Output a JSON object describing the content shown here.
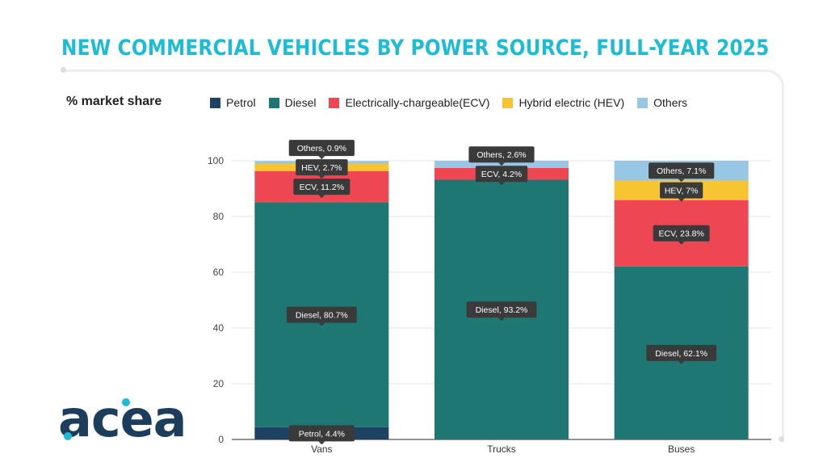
{
  "title": "NEW COMMERCIAL VEHICLES BY POWER SOURCE, FULL-YEAR 2025",
  "colors": {
    "title": "#1bbcd4",
    "Petrol": "#1d4263",
    "Diesel": "#1e7772",
    "ECV": "#ef4654",
    "HEV": "#f7c531",
    "Others": "#98c7e5",
    "label_bg": "#3a3a3a",
    "logo_dark": "#1c3d5c",
    "logo_accent": "#1bbcd4"
  },
  "legend": [
    {
      "key": "Petrol",
      "label": "Petrol"
    },
    {
      "key": "Diesel",
      "label": "Diesel"
    },
    {
      "key": "ECV",
      "label": "Electrically-chargeable(ECV)"
    },
    {
      "key": "HEV",
      "label": "Hybrid electric (HEV)"
    },
    {
      "key": "Others",
      "label": "Others"
    }
  ],
  "chart_data": {
    "type": "bar",
    "stacked": true,
    "ylabel": "% market share",
    "ylim": [
      0,
      100
    ],
    "yticks": [
      0,
      20,
      40,
      60,
      80,
      100
    ],
    "grid": true,
    "legend_position": "top",
    "categories": [
      "Vans",
      "Trucks",
      "Buses"
    ],
    "series": [
      {
        "key": "Petrol",
        "name": "Petrol",
        "values": [
          4.4,
          0,
          0
        ],
        "labels": [
          "Petrol, 4.4%",
          null,
          null
        ]
      },
      {
        "key": "Diesel",
        "name": "Diesel",
        "values": [
          80.7,
          93.2,
          62.1
        ],
        "labels": [
          "Diesel, 80.7%",
          "Diesel, 93.2%",
          "Diesel, 62.1%"
        ]
      },
      {
        "key": "ECV",
        "name": "Electrically-chargeable(ECV)",
        "values": [
          11.2,
          4.2,
          23.8
        ],
        "labels": [
          "ECV, 11.2%",
          "ECV, 4.2%",
          "ECV, 23.8%"
        ]
      },
      {
        "key": "HEV",
        "name": "Hybrid electric (HEV)",
        "values": [
          2.7,
          0,
          7
        ],
        "labels": [
          "HEV, 2.7%",
          null,
          "HEV, 7%"
        ]
      },
      {
        "key": "Others",
        "name": "Others",
        "values": [
          0.9,
          2.6,
          7.1
        ],
        "labels": [
          "Others, 0.9%",
          "Others, 2.6%",
          "Others, 7.1%"
        ]
      }
    ]
  },
  "logo": {
    "text": "acea"
  }
}
